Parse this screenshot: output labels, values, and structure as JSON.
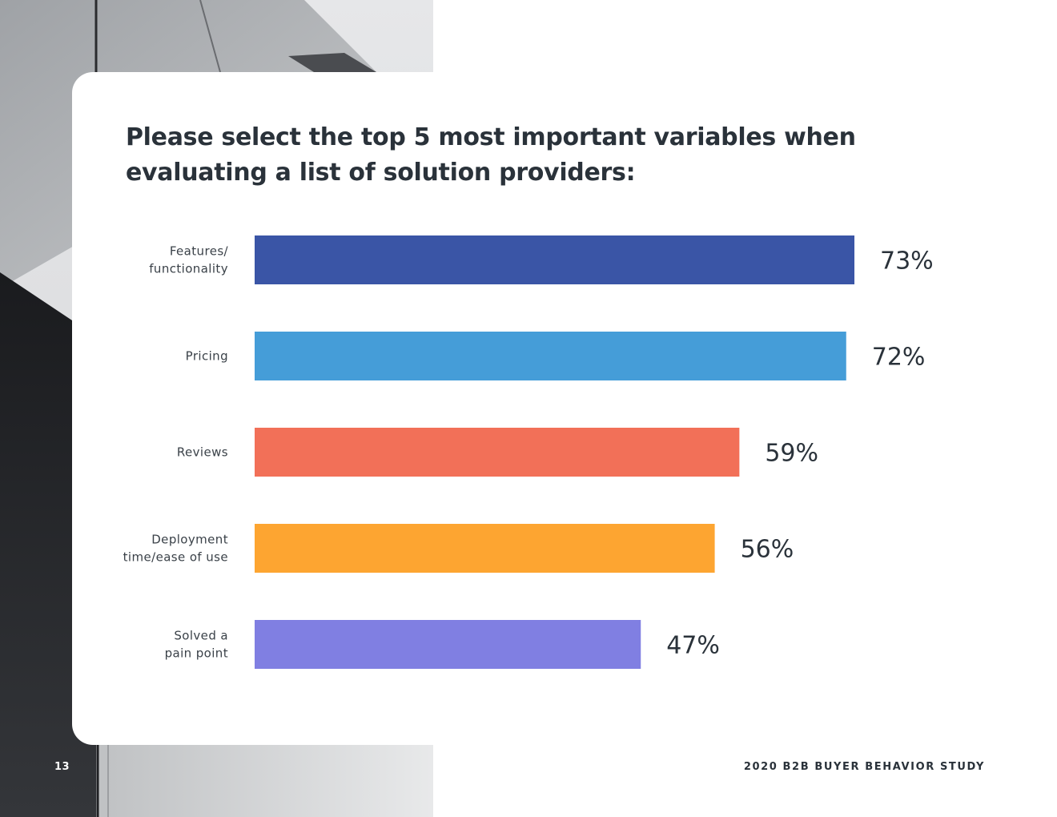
{
  "page": {
    "title": "Please select the top 5 most important variables when evaluating a list of solution providers:",
    "page_number": "13",
    "footer": "2020 B2B BUYER BEHAVIOR STUDY"
  },
  "chart_data": {
    "type": "bar",
    "orientation": "horizontal",
    "title": "Please select the top 5 most important variables when evaluating a list of solution providers:",
    "xlabel": "",
    "ylabel": "",
    "xlim": [
      0,
      73
    ],
    "grid": false,
    "categories": [
      [
        "Features/",
        "functionality"
      ],
      [
        "Pricing"
      ],
      [
        "Reviews"
      ],
      [
        "Deployment",
        "time/ease of use"
      ],
      [
        "Solved a",
        "pain point"
      ]
    ],
    "values": [
      73,
      72,
      59,
      56,
      47
    ],
    "value_labels": [
      "73%",
      "72%",
      "59%",
      "56%",
      "47%"
    ],
    "colors": [
      "#3a55a6",
      "#459dd8",
      "#f27058",
      "#fda531",
      "#807fe2"
    ]
  }
}
